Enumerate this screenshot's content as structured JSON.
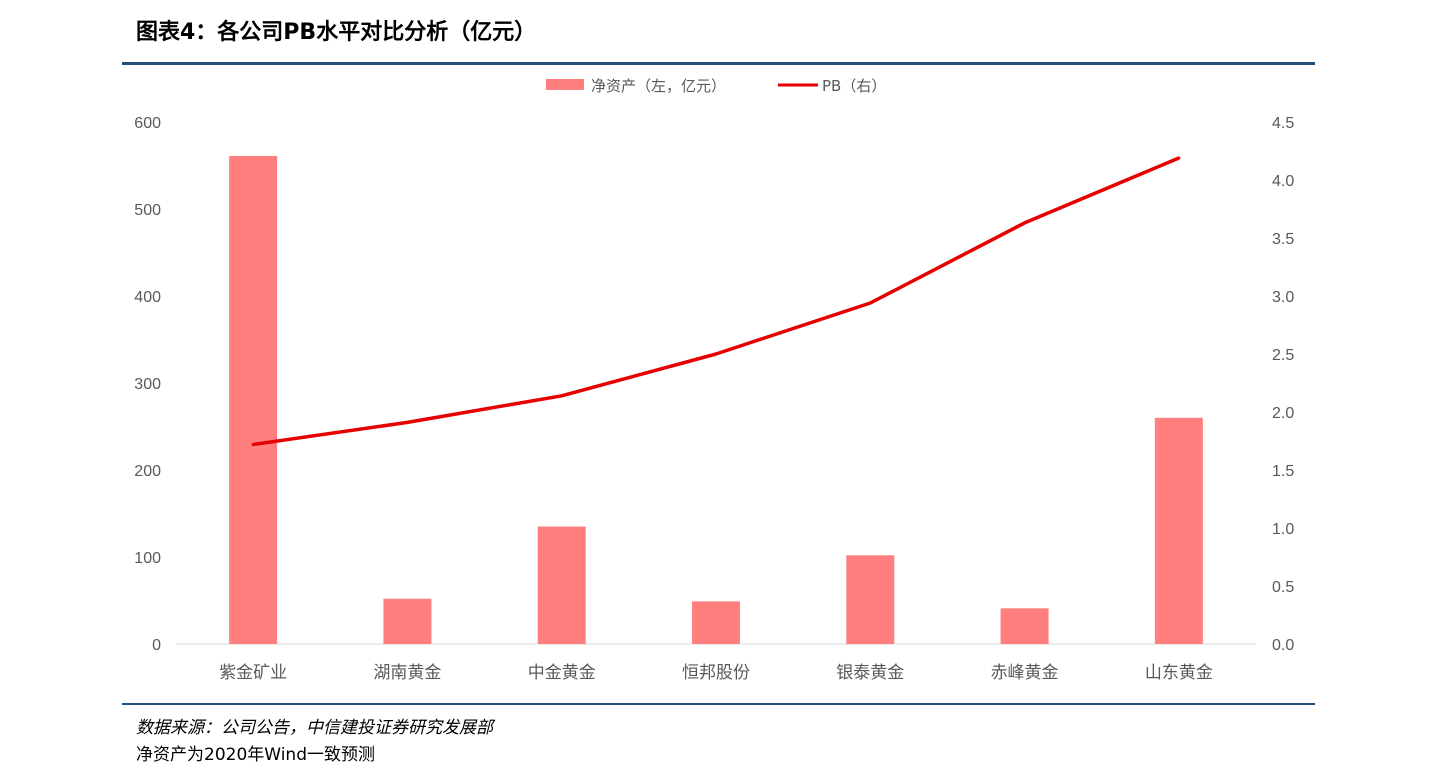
{
  "header": {
    "title": "图表4：各公司PB水平对比分析（亿元）"
  },
  "footer": {
    "source": "数据来源：公司公告，中信建投证券研究发展部",
    "note": "净资产为2020年Wind一致预测"
  },
  "colors": {
    "bar": "#ff7f7f",
    "line": "#e60000",
    "rule": "#1f4e79",
    "axis_text": "#595959"
  },
  "chart_data": {
    "type": "bar",
    "categories": [
      "紫金矿业",
      "湖南黄金",
      "中金黄金",
      "恒邦股份",
      "银泰黄金",
      "赤峰黄金",
      "山东黄金"
    ],
    "series": [
      {
        "name": "净资产（左，亿元）",
        "type": "bar",
        "axis": "left",
        "values": [
          561,
          52,
          135,
          49,
          102,
          41,
          260
        ]
      },
      {
        "name": "PB（右）",
        "type": "line",
        "axis": "right",
        "values": [
          1.72,
          1.91,
          2.14,
          2.5,
          2.94,
          3.63,
          4.19
        ]
      }
    ],
    "y_left": {
      "min": 0,
      "max": 600,
      "ticks": [
        "0",
        "100",
        "200",
        "300",
        "400",
        "500",
        "600"
      ]
    },
    "y_right": {
      "min": 0,
      "max": 4.5,
      "ticks": [
        "0.0",
        "0.5",
        "1.0",
        "1.5",
        "2.0",
        "2.5",
        "3.0",
        "3.5",
        "4.0",
        "4.5"
      ]
    },
    "legend": "top-center",
    "grid": false
  }
}
